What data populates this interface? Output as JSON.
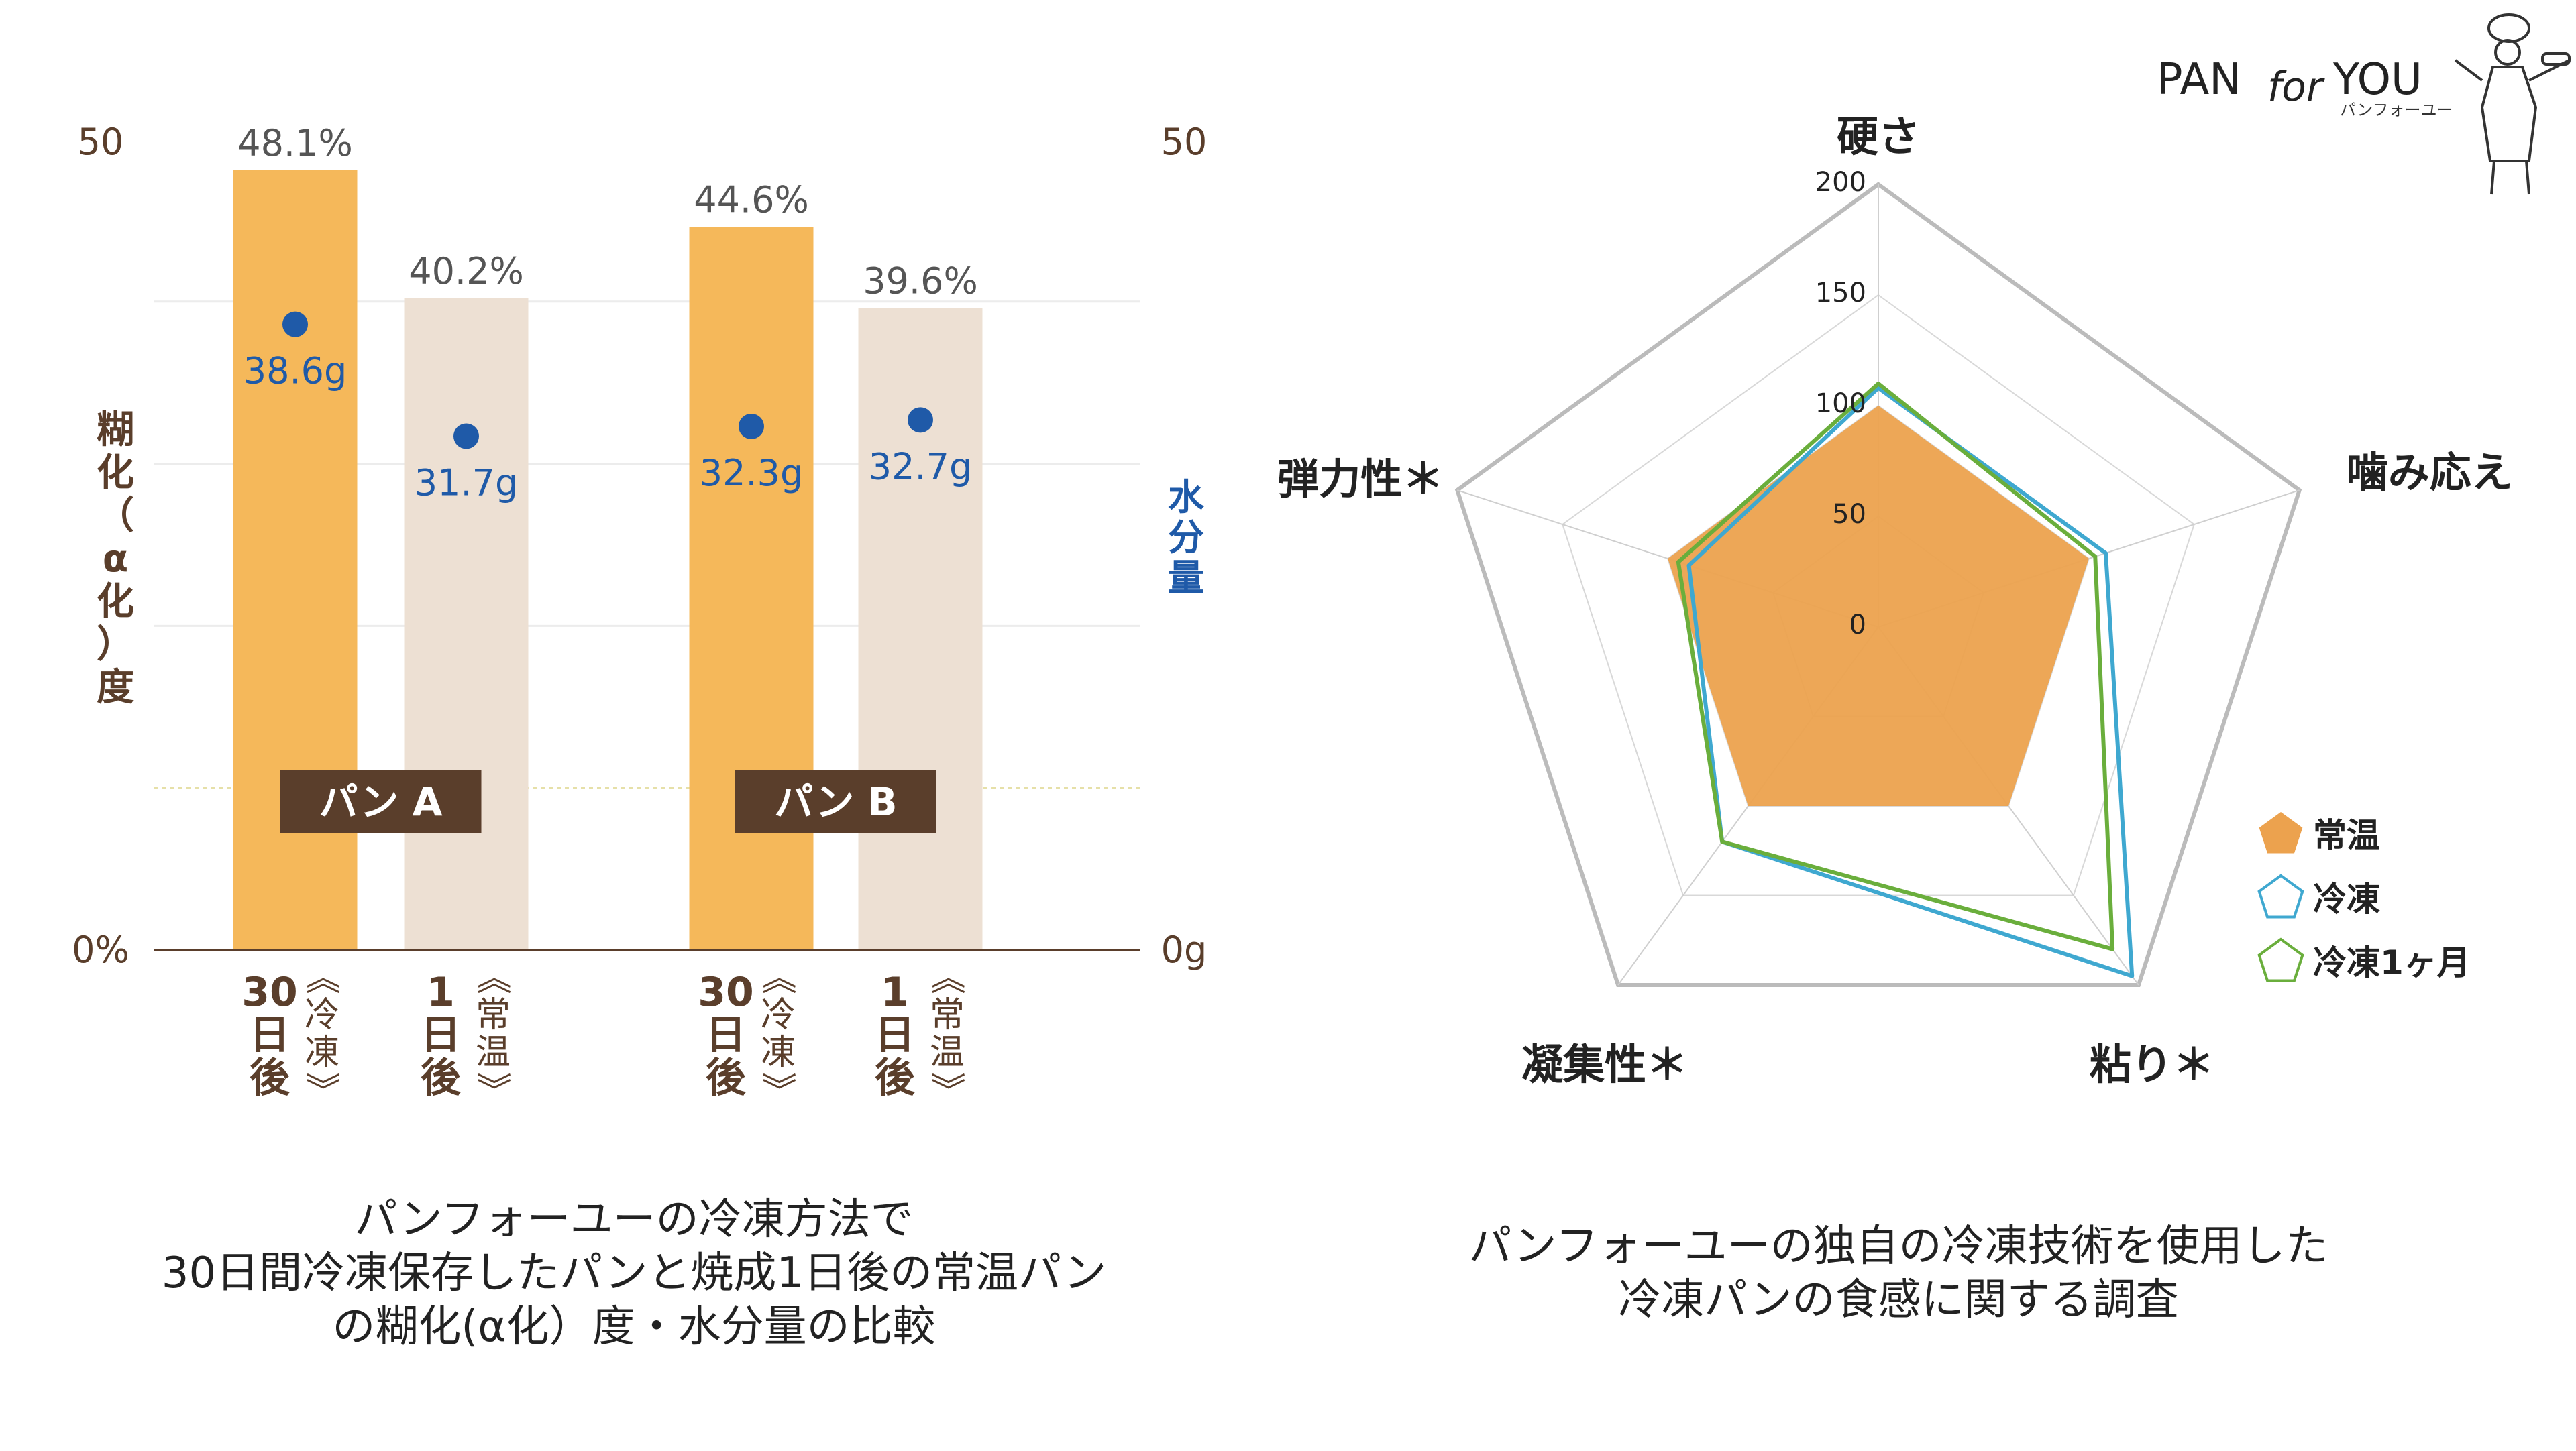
{
  "brand": {
    "name_left": "PAN",
    "name_mid": "for",
    "name_right": "YOU",
    "kana": "パンフォーユー"
  },
  "bar_chart": {
    "left_axis_label": [
      "糊",
      "化",
      "（",
      "α",
      "化",
      "）",
      "度"
    ],
    "right_axis_label": [
      "水",
      "分",
      "量"
    ],
    "left_ticks": [
      "50",
      "0%"
    ],
    "right_ticks": [
      "50",
      "0g"
    ],
    "caption_lines": [
      "パンフォーユーの冷凍方法で",
      "30日間冷凍保存したパンと焼成1日後の常温パン",
      "の糊化(α化）度・水分量の比較"
    ]
  },
  "radar_chart": {
    "caption_lines": [
      "パンフォーユーの独自の冷凍技術を使用した",
      "冷凍パンの食感に関する調査"
    ]
  },
  "colors": {
    "frozen_bar": "#f5b85a",
    "room_bar": "#ede0d3",
    "dot": "#1f5aa8",
    "brown": "#5a3e2b",
    "room_fill": "#eca24e",
    "frozen_line": "#3fa8d0",
    "frozen1m_line": "#6aae3c"
  },
  "chart_data": [
    {
      "type": "bar",
      "ylim": [
        0,
        50
      ],
      "y2lim": [
        0,
        50
      ],
      "groups": [
        {
          "label": "パン A",
          "bars": [
            {
              "xlabel_main": [
                "30",
                "日",
                "後"
              ],
              "xlabel_side": [
                "《",
                "冷",
                "凍",
                "》"
              ],
              "kind": "frozen",
              "value": 48.1,
              "value_label": "48.1%",
              "water": 38.6,
              "water_label": "38.6g"
            },
            {
              "xlabel_main": [
                "1",
                "日",
                "後"
              ],
              "xlabel_side": [
                "《",
                "常",
                "温",
                "》"
              ],
              "kind": "room",
              "value": 40.2,
              "value_label": "40.2%",
              "water": 31.7,
              "water_label": "31.7g"
            }
          ]
        },
        {
          "label": "パン B",
          "bars": [
            {
              "xlabel_main": [
                "30",
                "日",
                "後"
              ],
              "xlabel_side": [
                "《",
                "冷",
                "凍",
                "》"
              ],
              "kind": "frozen",
              "value": 44.6,
              "value_label": "44.6%",
              "water": 32.3,
              "water_label": "32.3g"
            },
            {
              "xlabel_main": [
                "1",
                "日",
                "後"
              ],
              "xlabel_side": [
                "《",
                "常",
                "温",
                "》"
              ],
              "kind": "room",
              "value": 39.6,
              "value_label": "39.6%",
              "water": 32.7,
              "water_label": "32.7g"
            }
          ]
        }
      ]
    },
    {
      "type": "radar",
      "axes": [
        "硬さ",
        "噛み応え",
        "粘り＊",
        "凝集性＊",
        "弾力性＊"
      ],
      "rmin": 0,
      "rmax": 200,
      "ticks": [
        0,
        50,
        100,
        150,
        200
      ],
      "series": [
        {
          "name": "常温",
          "key": "room",
          "values": [
            100,
            100,
            100,
            100,
            100
          ]
        },
        {
          "name": "冷凍",
          "key": "frozen",
          "values": [
            108,
            108,
            195,
            120,
            90
          ]
        },
        {
          "name": "冷凍1ヶ月",
          "key": "frozen1m",
          "values": [
            110,
            103,
            180,
            120,
            95
          ]
        }
      ]
    }
  ]
}
